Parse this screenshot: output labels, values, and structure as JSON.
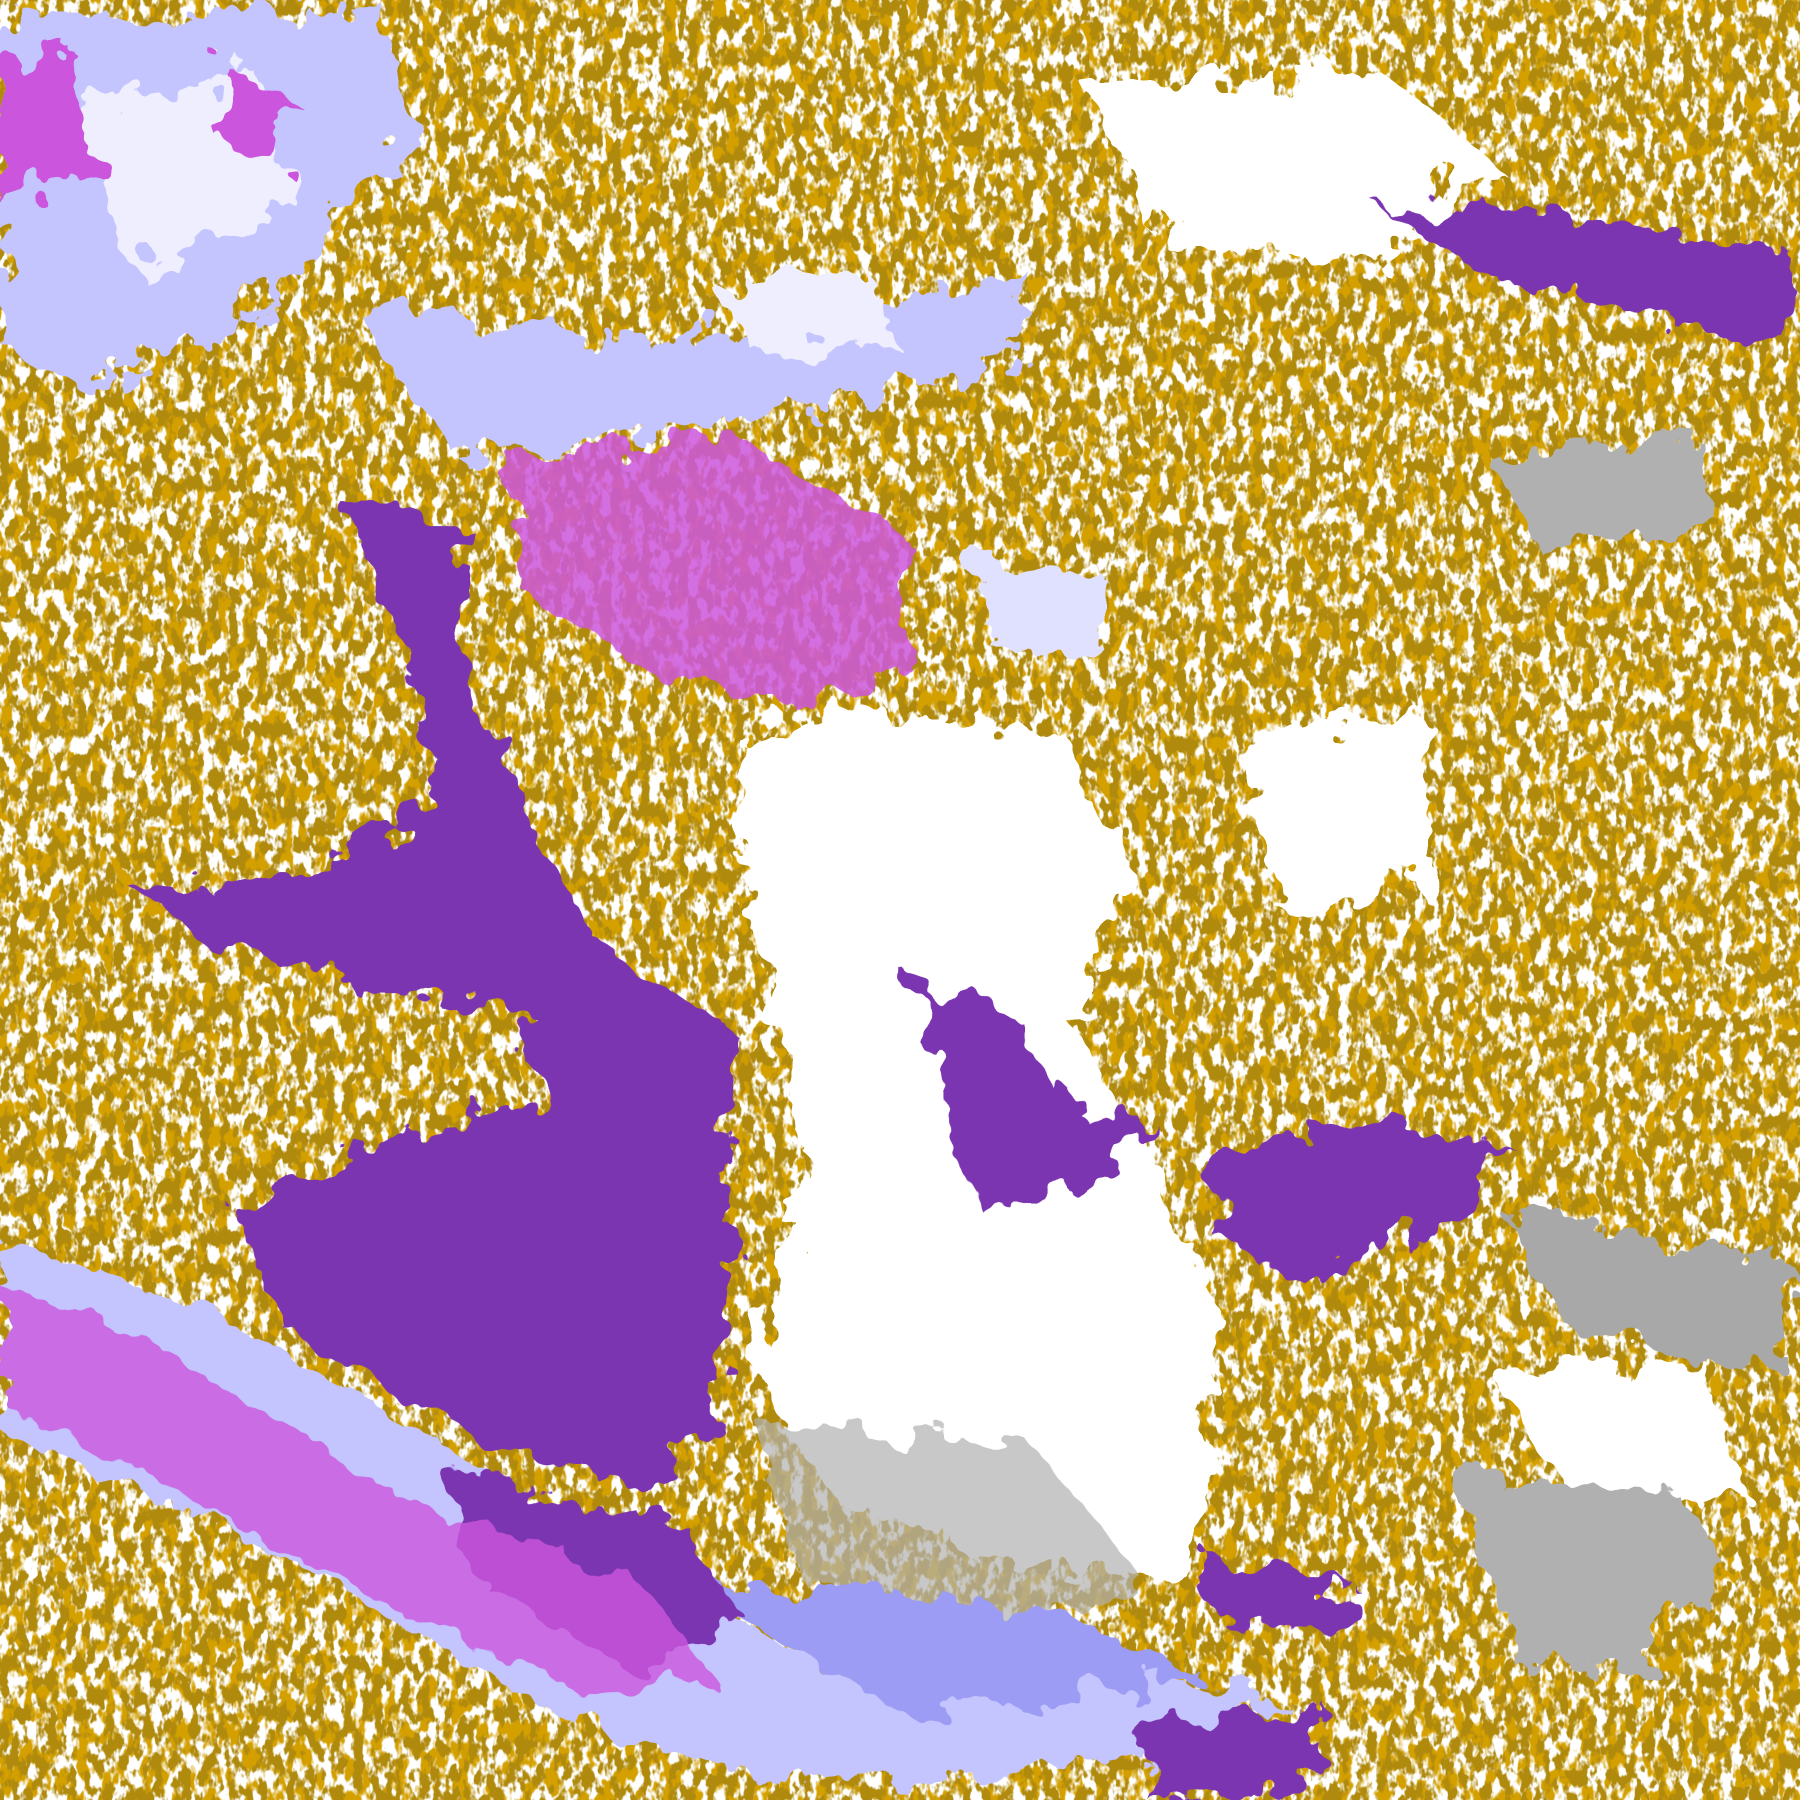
{
  "image": {
    "kind": "false-color satellite cloud classification",
    "palette": {
      "clear": "#ffffff",
      "gold": "#d4a000",
      "gold_dark": "#b08a10",
      "purple": "#7b35b0",
      "magenta": "#cc55dd",
      "lavender": "#c4c4ff",
      "periwinkle": "#9c9cf4",
      "pale": "#eeeeff",
      "gray": "#b0b0b0",
      "gray_dark": "#909090"
    }
  }
}
